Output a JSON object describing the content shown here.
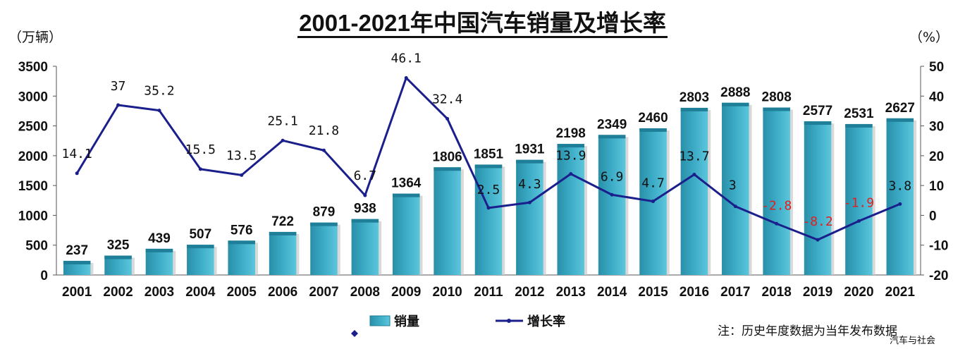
{
  "title": "2001-2021年中国汽车销量及增长率",
  "left_unit": "（万辆）",
  "right_unit": "（%）",
  "note": "注：历史年度数据为当年发布数据",
  "brand": "汽车与社会",
  "colors": {
    "bar": "#3aa9c4",
    "bar_top": "#1f7f98",
    "line": "#1a1f8c",
    "negative_label": "#e02020"
  },
  "chart_data": {
    "type": "bar",
    "categories": [
      "2001",
      "2002",
      "2003",
      "2004",
      "2005",
      "2006",
      "2007",
      "2008",
      "2009",
      "2010",
      "2011",
      "2012",
      "2013",
      "2014",
      "2015",
      "2016",
      "2017",
      "2018",
      "2019",
      "2020",
      "2021"
    ],
    "series": [
      {
        "name": "销量",
        "type": "bar",
        "axis": "left",
        "values": [
          237,
          325,
          439,
          507,
          576,
          722,
          879,
          938,
          1364,
          1806,
          1851,
          1931,
          2198,
          2349,
          2460,
          2803,
          2888,
          2808,
          2577,
          2531,
          2627
        ]
      },
      {
        "name": "增长率",
        "type": "line",
        "axis": "right",
        "values": [
          14.1,
          37,
          35.2,
          15.5,
          13.5,
          25.1,
          21.8,
          6.7,
          46.1,
          32.4,
          2.5,
          4.3,
          13.9,
          6.9,
          4.7,
          13.7,
          3,
          -2.8,
          -8.2,
          -1.9,
          3.8
        ],
        "labels": [
          "14.1",
          "37",
          "35.2",
          "15.5",
          "13.5",
          "25.1",
          "21.8",
          "6.7",
          "46.1",
          "32.4",
          "2.5",
          "4.3",
          "13.9",
          "6.9",
          "4.7",
          "13.7",
          "3",
          "-2.8",
          "-8.2",
          "-1.9",
          "3.8"
        ]
      }
    ],
    "y_left": {
      "ylim": [
        0,
        3500
      ],
      "ticks": [
        "0",
        "500",
        "1000",
        "1500",
        "2000",
        "2500",
        "3000",
        "3500"
      ]
    },
    "y_right": {
      "ylim": [
        -20,
        50
      ],
      "ticks": [
        "-20",
        "-10",
        "0",
        "10",
        "20",
        "30",
        "40",
        "50"
      ]
    },
    "legend": [
      "销量",
      "增长率"
    ],
    "legend_position": "bottom-center",
    "grid": false
  }
}
